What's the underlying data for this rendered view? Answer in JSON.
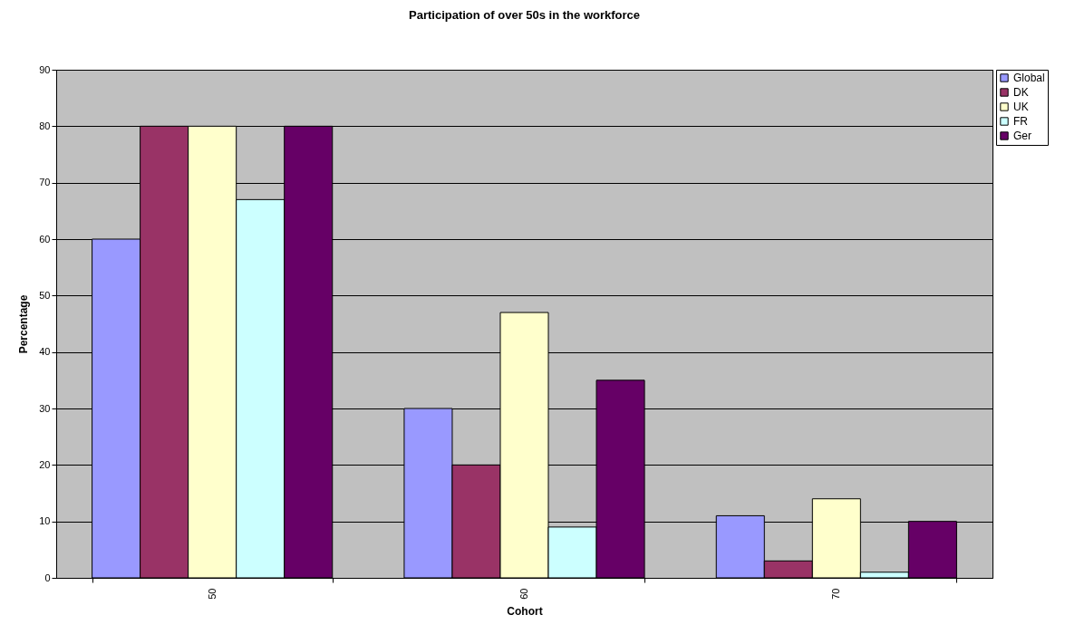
{
  "chart_data": {
    "type": "bar",
    "title": "Participation of over 50s in the workforce",
    "xlabel": "Cohort",
    "ylabel": "Percentage",
    "categories": [
      "50",
      "60",
      "70"
    ],
    "series": [
      {
        "name": "Global",
        "color": "#9999ff",
        "values": [
          60,
          30,
          11
        ]
      },
      {
        "name": "DK",
        "color": "#993366",
        "values": [
          80,
          20,
          3
        ]
      },
      {
        "name": "UK",
        "color": "#ffffcc",
        "values": [
          80,
          47,
          14
        ]
      },
      {
        "name": "FR",
        "color": "#ccffff",
        "values": [
          67,
          9,
          1
        ]
      },
      {
        "name": "Ger",
        "color": "#660066",
        "values": [
          80,
          35,
          10
        ]
      }
    ],
    "ylim": [
      0,
      90
    ],
    "yticks": [
      0,
      10,
      20,
      30,
      40,
      50,
      60,
      70,
      80,
      90
    ],
    "grid": "y",
    "legend": "right"
  }
}
